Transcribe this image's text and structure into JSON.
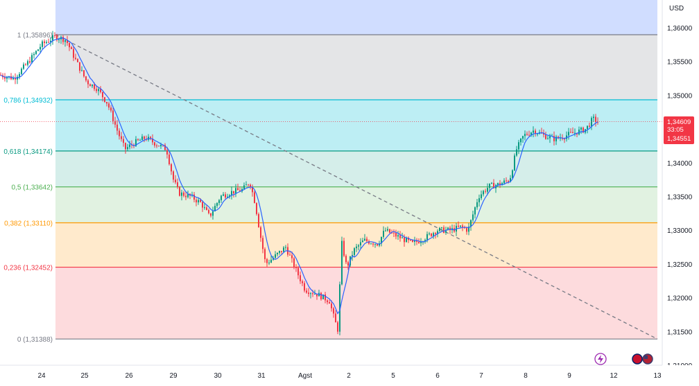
{
  "chart_data": {
    "type": "candlestick",
    "currency": "USD",
    "ylim": [
      1.31,
      1.36375
    ],
    "y_ticks": [
      "1,36000",
      "1,35500",
      "1,35000",
      "1,34500",
      "1,34000",
      "1,33500",
      "1,33000",
      "1,32500",
      "1,32000",
      "1,31500",
      "1,31000"
    ],
    "x_ticks": [
      "24",
      "25",
      "26",
      "29",
      "30",
      "31",
      "Agst",
      "2",
      "5",
      "6",
      "7",
      "8",
      "9",
      "12",
      "13"
    ],
    "fib": {
      "start_x_index": 80,
      "end_x_index": 948,
      "levels": [
        {
          "ratio": "1",
          "price": 1.35896,
          "label": "1 (1,35896)",
          "color": "#787b86",
          "fill": ""
        },
        {
          "ratio": "0.786",
          "price": 1.34932,
          "label": "0,786 (1,34932)",
          "color": "#00bcd4",
          "fill": "rgba(0,188,212,0.20)"
        },
        {
          "ratio": "0.618",
          "price": 1.34174,
          "label": "0,618 (1,34174)",
          "color": "#089981",
          "fill": "rgba(0,188,212,0.26)"
        },
        {
          "ratio": "0.5",
          "price": 1.33642,
          "label": "0,5 (1,33642)",
          "color": "#4caf50",
          "fill": "rgba(8,153,129,0.17)"
        },
        {
          "ratio": "0.382",
          "price": 1.3311,
          "label": "0,382 (1,33110)",
          "color": "#ff9800",
          "fill": "rgba(76,175,80,0.17)"
        },
        {
          "ratio": "0.236",
          "price": 1.32452,
          "label": "0,236 (1,32452)",
          "color": "#f23645",
          "fill": "rgba(255,152,0,0.20)"
        },
        {
          "ratio": "0",
          "price": 1.31388,
          "label": "0 (1,31388)",
          "color": "#787b86",
          "fill": "rgba(242,54,69,0.18)"
        }
      ],
      "above_fill": "rgba(41,98,255,0.22)",
      "between_1_0786_fill": "rgba(120,123,134,0.20)"
    },
    "trendline": {
      "from": [
        80,
        1.35896
      ],
      "to": [
        948,
        1.31388
      ]
    },
    "price_labels": {
      "current_price": "1,34609",
      "countdown": "33:05",
      "low_price": "1,34551",
      "current_value": 1.34609
    },
    "key_prices": [
      {
        "x": 0,
        "price": 1.353
      },
      {
        "x": 20,
        "price": 1.3525
      },
      {
        "x": 40,
        "price": 1.3548
      },
      {
        "x": 60,
        "price": 1.3575
      },
      {
        "x": 80,
        "price": 1.3587
      },
      {
        "x": 95,
        "price": 1.3582
      },
      {
        "x": 110,
        "price": 1.355
      },
      {
        "x": 125,
        "price": 1.352
      },
      {
        "x": 140,
        "price": 1.351
      },
      {
        "x": 155,
        "price": 1.3488
      },
      {
        "x": 170,
        "price": 1.3445
      },
      {
        "x": 180,
        "price": 1.342
      },
      {
        "x": 195,
        "price": 1.343
      },
      {
        "x": 210,
        "price": 1.3437
      },
      {
        "x": 225,
        "price": 1.3428
      },
      {
        "x": 240,
        "price": 1.342
      },
      {
        "x": 250,
        "price": 1.3375
      },
      {
        "x": 258,
        "price": 1.3355
      },
      {
        "x": 275,
        "price": 1.335
      },
      {
        "x": 290,
        "price": 1.334
      },
      {
        "x": 302,
        "price": 1.332
      },
      {
        "x": 318,
        "price": 1.335
      },
      {
        "x": 335,
        "price": 1.3357
      },
      {
        "x": 350,
        "price": 1.336
      },
      {
        "x": 360,
        "price": 1.3372
      },
      {
        "x": 368,
        "price": 1.334
      },
      {
        "x": 375,
        "price": 1.3295
      },
      {
        "x": 383,
        "price": 1.325
      },
      {
        "x": 395,
        "price": 1.326
      },
      {
        "x": 412,
        "price": 1.3275
      },
      {
        "x": 425,
        "price": 1.3245
      },
      {
        "x": 440,
        "price": 1.3212
      },
      {
        "x": 458,
        "price": 1.3205
      },
      {
        "x": 475,
        "price": 1.3195
      },
      {
        "x": 483,
        "price": 1.3165
      },
      {
        "x": 488,
        "price": 1.315
      },
      {
        "x": 492,
        "price": 1.3285
      },
      {
        "x": 500,
        "price": 1.3245
      },
      {
        "x": 510,
        "price": 1.327
      },
      {
        "x": 525,
        "price": 1.3285
      },
      {
        "x": 545,
        "price": 1.328
      },
      {
        "x": 555,
        "price": 1.33
      },
      {
        "x": 575,
        "price": 1.329
      },
      {
        "x": 595,
        "price": 1.328
      },
      {
        "x": 615,
        "price": 1.329
      },
      {
        "x": 630,
        "price": 1.33
      },
      {
        "x": 650,
        "price": 1.33
      },
      {
        "x": 665,
        "price": 1.3305
      },
      {
        "x": 675,
        "price": 1.33
      },
      {
        "x": 690,
        "price": 1.335
      },
      {
        "x": 705,
        "price": 1.3365
      },
      {
        "x": 720,
        "price": 1.3368
      },
      {
        "x": 735,
        "price": 1.3375
      },
      {
        "x": 745,
        "price": 1.342
      },
      {
        "x": 755,
        "price": 1.344
      },
      {
        "x": 770,
        "price": 1.3448
      },
      {
        "x": 785,
        "price": 1.344
      },
      {
        "x": 800,
        "price": 1.3435
      },
      {
        "x": 815,
        "price": 1.344
      },
      {
        "x": 830,
        "price": 1.3445
      },
      {
        "x": 845,
        "price": 1.345
      },
      {
        "x": 855,
        "price": 1.3465
      },
      {
        "x": 862,
        "price": 1.3461
      }
    ]
  },
  "icons": {
    "lightning": "lightning-icon",
    "flags": "currency-flags-icon"
  },
  "colors": {
    "up_candle": "#089981",
    "down_candle": "#f23645",
    "ma_line": "#2962ff",
    "trend_dash": "#787b86"
  }
}
